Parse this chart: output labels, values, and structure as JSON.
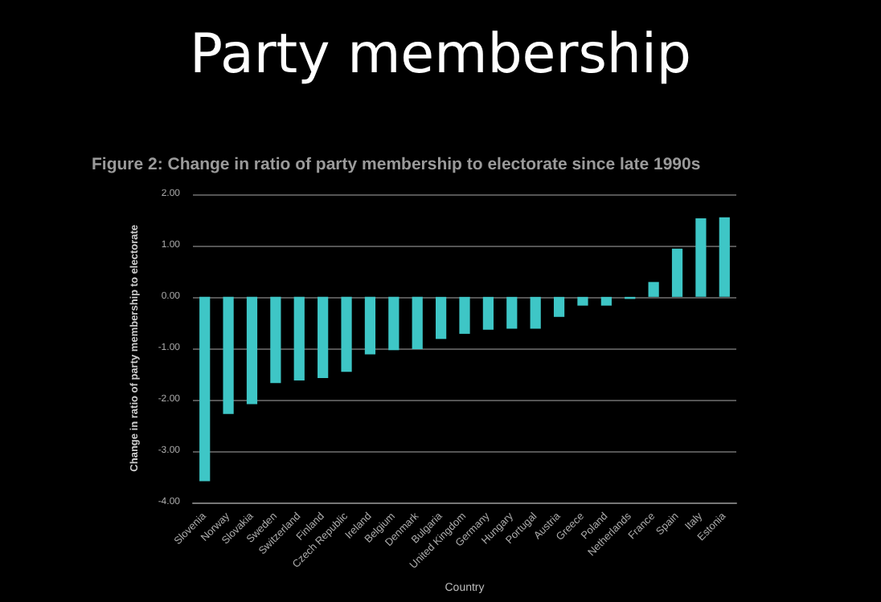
{
  "chart_data": {
    "type": "bar",
    "title": "Party membership",
    "subtitle": "Figure 2: Change in ratio of party membership to electorate since late 1990s",
    "xlabel": "Country",
    "ylabel": "Change in ratio of party membership to electorate",
    "categories": [
      "Slovenia",
      "Norway",
      "Slovakia",
      "Sweden",
      "Switzerland",
      "Finland",
      "Czech Republic",
      "Ireland",
      "Belgium",
      "Denmark",
      "Bulgaria",
      "United Kingdom",
      "Germany",
      "Hungary",
      "Portugal",
      "Austria",
      "Greece",
      "Poland",
      "Netherlands",
      "France",
      "Spain",
      "Italy",
      "Estonia"
    ],
    "values": [
      -3.59,
      -2.28,
      -2.09,
      -1.68,
      -1.63,
      -1.58,
      -1.46,
      -1.12,
      -1.04,
      -1.02,
      -0.82,
      -0.72,
      -0.64,
      -0.62,
      -0.62,
      -0.39,
      -0.17,
      -0.17,
      -0.04,
      0.29,
      0.94,
      1.53,
      1.55
    ],
    "color": "#3ec6c6",
    "ylim": [
      -4,
      2
    ],
    "yticks": [
      {
        "value": -4,
        "label": "-4.00"
      },
      {
        "value": -3,
        "label": "-3.00"
      },
      {
        "value": -2,
        "label": "-2.00"
      },
      {
        "value": -1,
        "label": "-1.00"
      },
      {
        "value": 0,
        "label": "0.00"
      },
      {
        "value": 1,
        "label": "1.00"
      },
      {
        "value": 2,
        "label": "2.00"
      }
    ],
    "grid": "y"
  }
}
